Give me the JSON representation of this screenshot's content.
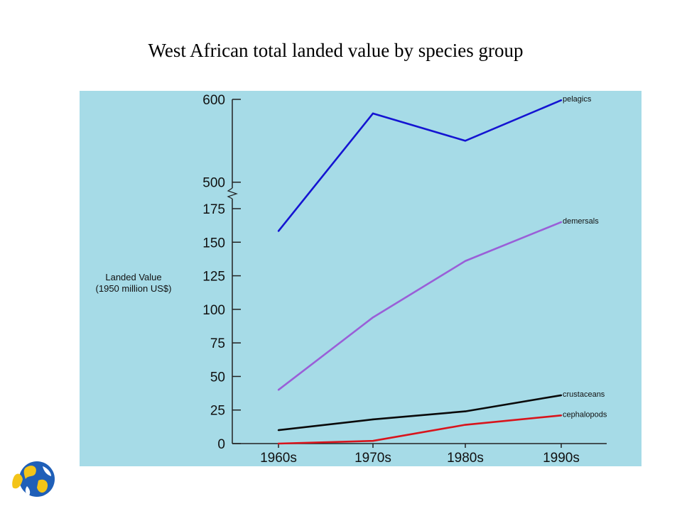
{
  "slide": {
    "title": "West African total landed value by species group"
  },
  "chart_data": {
    "type": "line",
    "title": "",
    "xlabel": "",
    "ylabel_lines": [
      "Landed Value",
      "(1950 million US$)"
    ],
    "categories": [
      "1960s",
      "1970s",
      "1980s",
      "1990s"
    ],
    "y_axis": {
      "lower_ticks": [
        0,
        25,
        50,
        75,
        100,
        125,
        150,
        175
      ],
      "upper_ticks": [
        500,
        600
      ],
      "broken_axis": true,
      "lower_range": [
        0,
        175
      ],
      "upper_range": [
        460,
        600
      ]
    },
    "grid": false,
    "legend": "inline labels at line ends",
    "series": [
      {
        "name": "pelagics",
        "color": "#1414d2",
        "values": [
          441,
          583,
          550,
          599
        ]
      },
      {
        "name": "demersals",
        "color": "#9a5fd8",
        "values": [
          40,
          94,
          136,
          165
        ]
      },
      {
        "name": "crustaceans",
        "color": "#0a0a0a",
        "values": [
          10,
          18,
          24,
          36
        ]
      },
      {
        "name": "cephalopods",
        "color": "#d8141c",
        "values": [
          0,
          2,
          14,
          21
        ]
      }
    ]
  }
}
